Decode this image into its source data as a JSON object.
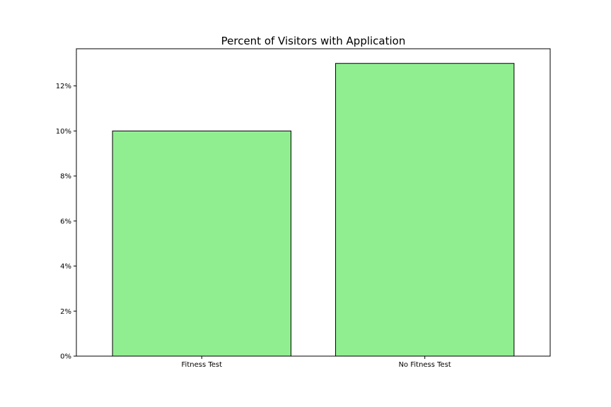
{
  "chart_data": {
    "type": "bar",
    "title": "Percent of Visitors with Application",
    "xlabel": "",
    "ylabel": "",
    "categories": [
      "Fitness Test",
      "No Fitness Test"
    ],
    "values": [
      10.0,
      13.0
    ],
    "ylim": [
      0,
      13.65
    ],
    "y_ticks": [
      0,
      2,
      4,
      6,
      8,
      10,
      12
    ],
    "y_tick_format": "percent",
    "grid": false,
    "legend": "none",
    "colors": {
      "bar_fill": "#90EE90",
      "bar_edge": "#000000",
      "axes": "#000000"
    }
  }
}
